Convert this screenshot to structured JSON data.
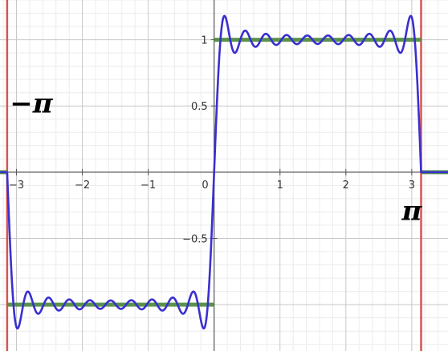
{
  "chart_data": {
    "type": "line",
    "title": "",
    "xlabel": "",
    "ylabel": "",
    "xlim": [
      -3.25,
      3.55
    ],
    "ylim": [
      -1.35,
      1.3
    ],
    "grid": true,
    "x_ticks": [
      {
        "value": -3,
        "label": "−3"
      },
      {
        "value": -2,
        "label": "−2"
      },
      {
        "value": -1,
        "label": "−1"
      },
      {
        "value": 1,
        "label": "1"
      },
      {
        "value": 2,
        "label": "2"
      },
      {
        "value": 3,
        "label": "3"
      }
    ],
    "origin_label": "0",
    "y_ticks": [
      {
        "value": 1,
        "label": "1"
      },
      {
        "value": 0.5,
        "label": "0.5"
      },
      {
        "value": -0.5,
        "label": "−0.5"
      }
    ],
    "annotations": [
      {
        "text": "−π",
        "x": -3.1,
        "y": 0.45
      },
      {
        "text": "π",
        "x": 2.85,
        "y": -0.36
      }
    ],
    "vertical_lines": [
      {
        "x": -3.14159,
        "color": "#d9534f"
      },
      {
        "x": 3.14159,
        "color": "#d9534f"
      }
    ],
    "series": [
      {
        "kind": "square-wave",
        "color": "#4a8a3a",
        "segments": [
          {
            "x": [
              -3.3,
              -3.14159
            ],
            "y": 0
          },
          {
            "x": [
              -3.14159,
              0
            ],
            "y": -1
          },
          {
            "x": [
              0,
              3.14159
            ],
            "y": 1
          },
          {
            "x": [
              3.14159,
              3.6
            ],
            "y": 0
          }
        ]
      },
      {
        "kind": "fourier-partial-sum",
        "color": "#3a2fd0",
        "odd_harmonics_up_to": 19,
        "domain": [
          -3.14159,
          3.14159
        ],
        "outside_value": 0
      }
    ]
  }
}
